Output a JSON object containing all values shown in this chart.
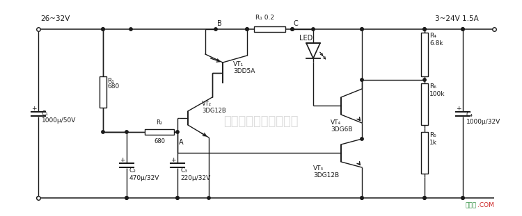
{
  "bg_color": "#ffffff",
  "line_color": "#1a1a1a",
  "text_color": "#1a1a1a",
  "lw": 1.0,
  "fig_width": 7.5,
  "fig_height": 3.11,
  "watermark": "杭州远编科技有限公司",
  "labels": {
    "input": "26~32V",
    "output": "3~24V 1.5A",
    "C1": "C₁\n1000μ/50V",
    "C2": "C₂\n470μ/32V",
    "C3": "C₃\n220μ/32V",
    "C4": "C₄\n1000μ/32V",
    "R1_lbl": "R₁",
    "R1_val": "680",
    "R2_lbl": "R₂",
    "R2_val": "680",
    "R3_lbl": "R₁ 0.2",
    "R4_lbl": "R₄",
    "R4_val": "6.8k",
    "R5_lbl": "R₅",
    "R5_val": "1k",
    "R6_lbl": "R₆",
    "R6_val": "100k",
    "VT1": "VT₁\n3DD5A",
    "VT2": "VT₂\n3DG12B",
    "VT3": "VT₃\n3DG12B",
    "VT4": "VT₄\n3DG6B",
    "LED": "LED",
    "node_B": "B",
    "node_A": "A",
    "node_C": "C",
    "footer_text": "接线图",
    "footer_com": ".COM"
  }
}
